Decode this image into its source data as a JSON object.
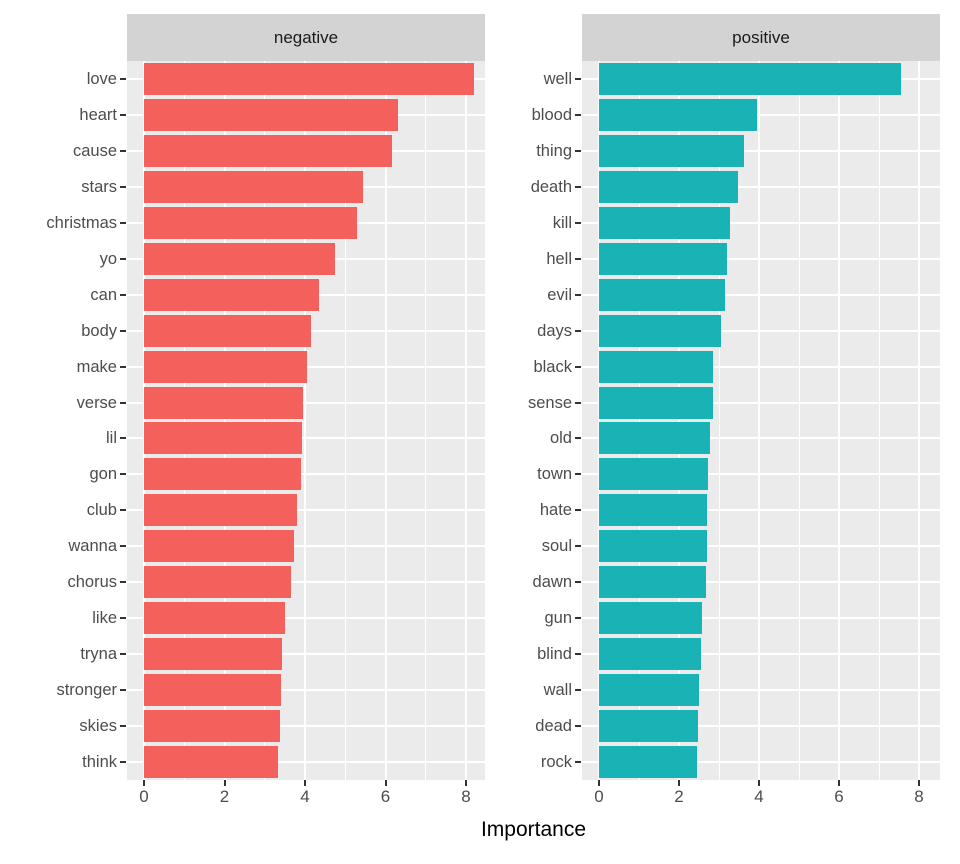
{
  "chart_data": {
    "type": "bar",
    "orientation": "horizontal",
    "title": "",
    "xlabel": "Importance",
    "xlim": [
      0,
      8.8
    ],
    "xticks": [
      "0",
      "2",
      "4",
      "6",
      "8"
    ],
    "xtick_values": [
      0,
      2,
      4,
      6,
      8
    ],
    "minor_ticks": [
      1,
      3,
      5,
      7
    ],
    "grid": true,
    "legend": "none",
    "facets": [
      {
        "label": "negative",
        "color": "#F4615D",
        "categories": [
          "love",
          "heart",
          "cause",
          "stars",
          "christmas",
          "yo",
          "can",
          "body",
          "make",
          "verse",
          "lil",
          "gon",
          "club",
          "wanna",
          "chorus",
          "like",
          "tryna",
          "stronger",
          "skies",
          "think"
        ],
        "values": [
          8.2,
          6.3,
          6.15,
          5.45,
          5.3,
          4.75,
          4.35,
          4.15,
          4.05,
          3.95,
          3.92,
          3.9,
          3.8,
          3.72,
          3.66,
          3.5,
          3.43,
          3.4,
          3.37,
          3.34
        ]
      },
      {
        "label": "positive",
        "color": "#19B3B5",
        "categories": [
          "well",
          "blood",
          "thing",
          "death",
          "kill",
          "hell",
          "evil",
          "days",
          "black",
          "sense",
          "old",
          "town",
          "hate",
          "soul",
          "dawn",
          "gun",
          "blind",
          "wall",
          "dead",
          "rock"
        ],
        "values": [
          7.55,
          3.95,
          3.62,
          3.47,
          3.27,
          3.2,
          3.16,
          3.05,
          2.86,
          2.84,
          2.78,
          2.73,
          2.71,
          2.69,
          2.67,
          2.58,
          2.55,
          2.51,
          2.47,
          2.45
        ]
      }
    ]
  },
  "colors": {
    "panel_bg": "#EBEBEB",
    "strip_bg": "#D3D3D3",
    "grid": "#FFFFFF",
    "axis_text": "#4D4D4D",
    "tick_mark": "#333333"
  }
}
